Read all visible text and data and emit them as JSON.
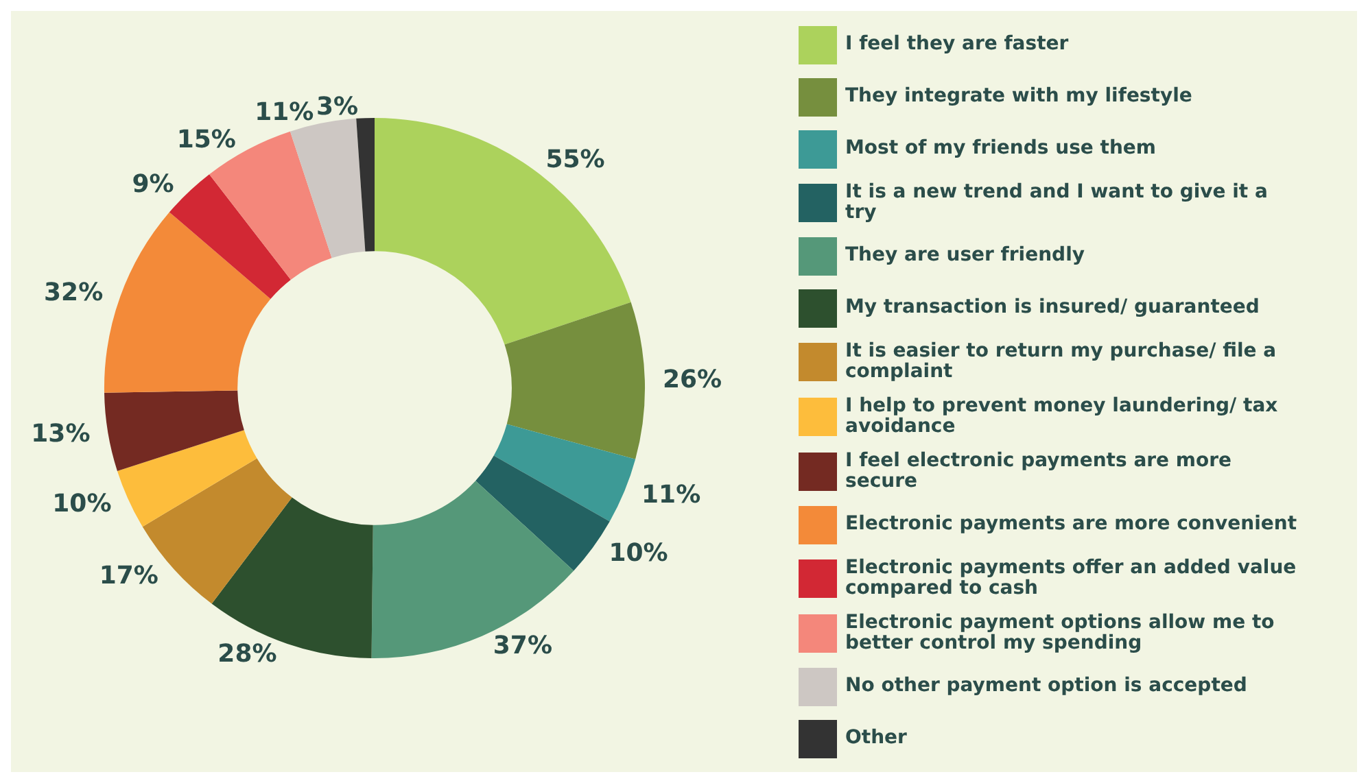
{
  "chart_data": {
    "type": "donut",
    "categories": [
      "I feel they are faster",
      "They integrate with my lifestyle",
      "Most of my friends use them",
      "It is a new trend and I want to give it a try",
      "They are user friendly",
      "My transaction is insured/ guaranteed",
      "It is easier to return my purchase/ file a complaint",
      "I help to prevent money laundering/ tax avoidance",
      "I feel electronic payments are more secure",
      "Electronic payments are more convenient",
      "Electronic payments offer an added value compared to cash",
      "Electronic payment options allow me to better control my spending",
      "No other payment option is accepted",
      "Other"
    ],
    "values": [
      55,
      26,
      11,
      10,
      37,
      28,
      17,
      10,
      13,
      32,
      9,
      15,
      11,
      3
    ],
    "value_labels": [
      "55%",
      "26%",
      "11%",
      "10%",
      "37%",
      "28%",
      "17%",
      "10%",
      "13%",
      "32%",
      "9%",
      "15%",
      "11%",
      "3%"
    ],
    "colors": [
      "#acd25c",
      "#768f3e",
      "#3d9a96",
      "#236262",
      "#559879",
      "#2d502e",
      "#c38a2d",
      "#fdbd3c",
      "#742a22",
      "#f38a39",
      "#d22834",
      "#f4877b",
      "#cdc7c3",
      "#333333"
    ],
    "legend": "right"
  }
}
